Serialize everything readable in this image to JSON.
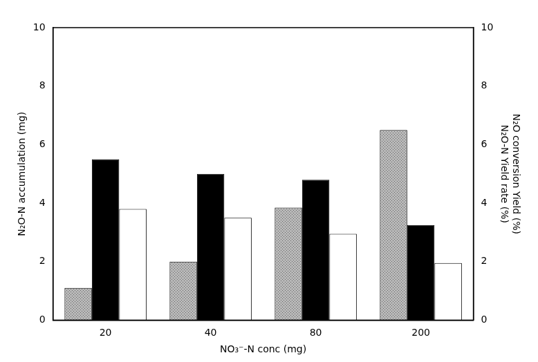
{
  "chart_data": {
    "type": "bar",
    "x_label": "NO₃⁻-N conc (mg)",
    "y_label": "N₂O-N accumulation (mg)",
    "y2_label": [
      "N₂O conversion Yield (%)",
      "N₂O-N Yield rate (%)"
    ],
    "categories": [
      "20",
      "40",
      "80",
      "200"
    ],
    "series": [
      {
        "color": "#b8b8b8",
        "axis": "y",
        "values": [
          1.1,
          2.0,
          3.85,
          6.5
        ]
      },
      {
        "color": "#000000",
        "axis": "y2",
        "values": [
          5.5,
          5.0,
          4.8,
          3.25
        ]
      },
      {
        "color": "#ffffff",
        "axis": "y2",
        "values": [
          3.8,
          3.5,
          2.95,
          1.95
        ]
      }
    ],
    "ylim": [
      0,
      10
    ],
    "yticks": [
      0,
      2,
      4,
      6,
      8,
      10
    ],
    "y2lim": [
      0,
      10
    ],
    "y2ticks": [
      0,
      2,
      4,
      6,
      8,
      10
    ],
    "grid": false
  }
}
